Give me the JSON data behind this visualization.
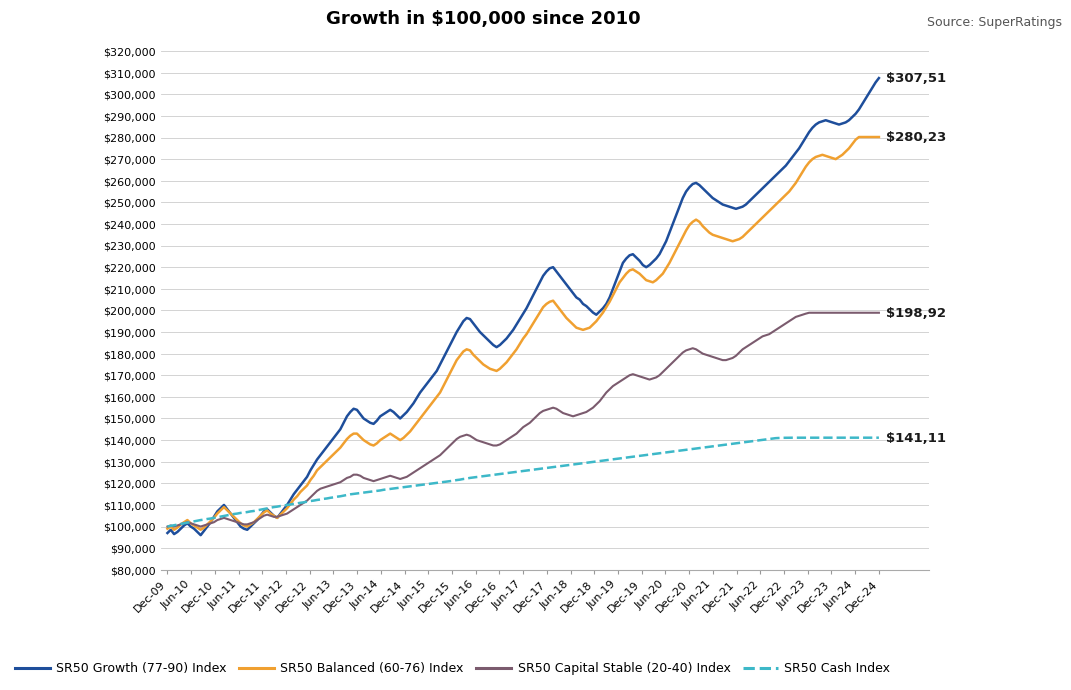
{
  "title": "Growth in $100,000 since 2010",
  "source": "Source: SuperRatings",
  "background_color": "#ffffff",
  "plot_bg_color": "#ffffff",
  "grid_color": "#cccccc",
  "ylim": [
    80000,
    325000
  ],
  "yticks": [
    80000,
    90000,
    100000,
    110000,
    120000,
    130000,
    140000,
    150000,
    160000,
    170000,
    180000,
    190000,
    200000,
    210000,
    220000,
    230000,
    240000,
    250000,
    260000,
    270000,
    280000,
    290000,
    300000,
    310000,
    320000
  ],
  "x_labels": [
    "Dec-09",
    "Jun-10",
    "Dec-10",
    "Jun-11",
    "Dec-11",
    "Jun-12",
    "Dec-12",
    "Jun-13",
    "Dec-13",
    "Jun-14",
    "Dec-14",
    "Jun-15",
    "Dec-15",
    "Jun-16",
    "Dec-16",
    "Jun-17",
    "Dec-17",
    "Jun-18",
    "Dec-18",
    "Jun-19",
    "Dec-19",
    "Jun-20",
    "Dec-20",
    "Jun-21",
    "Dec-21",
    "Jun-22",
    "Dec-22",
    "Jun-23",
    "Dec-23",
    "Jun-24",
    "Dec-24"
  ],
  "end_labels": {
    "growth": "$307,51",
    "balanced": "$280,23",
    "capital_stable": "$198,92",
    "cash": "$141,11"
  },
  "series": {
    "growth": {
      "label": "SR50 Growth (77-90) Index",
      "color": "#1e4e9b",
      "linewidth": 1.8,
      "linestyle": "solid",
      "values": [
        97000,
        98500,
        96500,
        97500,
        99000,
        100500,
        101500,
        100000,
        99000,
        97500,
        96000,
        98000,
        100000,
        102000,
        104500,
        107000,
        108500,
        110000,
        108000,
        106000,
        104000,
        102000,
        100000,
        99000,
        98500,
        100000,
        101500,
        103000,
        105000,
        107000,
        108000,
        106500,
        105000,
        104000,
        106000,
        108000,
        110000,
        112500,
        115000,
        117000,
        119000,
        121000,
        123000,
        126000,
        128500,
        131000,
        133000,
        135000,
        137000,
        139000,
        141000,
        143000,
        145000,
        148000,
        151000,
        153000,
        154500,
        154000,
        152000,
        150000,
        149000,
        148000,
        147500,
        149000,
        151000,
        152000,
        153000,
        154000,
        153000,
        151500,
        150000,
        151500,
        153000,
        155000,
        157000,
        159500,
        162000,
        164000,
        166000,
        168000,
        170000,
        172000,
        175000,
        178000,
        181000,
        184000,
        187000,
        190000,
        192500,
        195000,
        196500,
        196000,
        194000,
        192000,
        190000,
        188500,
        187000,
        185500,
        184000,
        183000,
        184000,
        185500,
        187000,
        189000,
        191000,
        193500,
        196000,
        198500,
        201000,
        204000,
        207000,
        210000,
        213000,
        216000,
        218000,
        219500,
        220000,
        218000,
        216000,
        214000,
        212000,
        210000,
        208000,
        206000,
        205000,
        203000,
        202000,
        200500,
        199000,
        198000,
        199500,
        201000,
        203000,
        206000,
        210000,
        214000,
        218000,
        222000,
        224000,
        225500,
        226000,
        224500,
        223000,
        221000,
        220000,
        221000,
        222500,
        224000,
        226000,
        229000,
        232000,
        236000,
        240000,
        244000,
        248000,
        252000,
        255000,
        257000,
        258500,
        259000,
        258000,
        256500,
        255000,
        253500,
        252000,
        251000,
        250000,
        249000,
        248500,
        248000,
        247500,
        247000,
        247500,
        248000,
        249000,
        250500,
        252000,
        253500,
        255000,
        256500,
        258000,
        259500,
        261000,
        262500,
        264000,
        265500,
        267000,
        269000,
        271000,
        273000,
        275000,
        277500,
        280000,
        282500,
        284500,
        286000,
        287000,
        287500,
        288000,
        287500,
        287000,
        286500,
        286000,
        286500,
        287000,
        288000,
        289500,
        291000,
        293000,
        295500,
        298000,
        300500,
        303000,
        305500,
        307510
      ]
    },
    "balanced": {
      "label": "SR50 Balanced (60-76) Index",
      "color": "#f0a030",
      "linewidth": 1.8,
      "linestyle": "solid",
      "values": [
        99000,
        100000,
        98500,
        99500,
        101000,
        102000,
        103000,
        101500,
        100500,
        99500,
        98500,
        99500,
        101000,
        102500,
        104000,
        106000,
        107500,
        109000,
        107500,
        106000,
        104500,
        103000,
        101500,
        100500,
        100000,
        101000,
        102000,
        103500,
        105000,
        106500,
        107500,
        106000,
        105000,
        104000,
        105500,
        107000,
        108500,
        110500,
        112500,
        114000,
        116000,
        117500,
        119000,
        121500,
        123500,
        126000,
        127500,
        129000,
        130500,
        132000,
        133500,
        135000,
        136500,
        138500,
        140500,
        142000,
        143000,
        143000,
        141500,
        140000,
        139000,
        138000,
        137500,
        138500,
        140000,
        141000,
        142000,
        143000,
        142000,
        141000,
        140000,
        141000,
        142500,
        144000,
        146000,
        148000,
        150000,
        152000,
        154000,
        156000,
        158000,
        160000,
        162000,
        165000,
        168000,
        171000,
        174000,
        177000,
        179000,
        181000,
        182000,
        181500,
        179500,
        178000,
        176500,
        175000,
        174000,
        173000,
        172500,
        172000,
        173000,
        174500,
        176000,
        178000,
        180000,
        182000,
        184500,
        187000,
        189000,
        191500,
        194000,
        196500,
        199000,
        201500,
        203000,
        204000,
        204500,
        202500,
        200500,
        198500,
        196500,
        195000,
        193500,
        192000,
        191500,
        191000,
        191500,
        192000,
        193500,
        195000,
        197000,
        199000,
        201500,
        204000,
        207000,
        210000,
        213000,
        215000,
        217000,
        218500,
        219000,
        218000,
        217000,
        215500,
        214000,
        213500,
        213000,
        214000,
        215500,
        217000,
        219500,
        222000,
        225000,
        228000,
        231000,
        234000,
        237000,
        239500,
        241000,
        242000,
        241000,
        239000,
        237500,
        236000,
        235000,
        234500,
        234000,
        233500,
        233000,
        232500,
        232000,
        232500,
        233000,
        234000,
        235500,
        237000,
        238500,
        240000,
        241500,
        243000,
        244500,
        246000,
        247500,
        249000,
        250500,
        252000,
        253500,
        255000,
        257000,
        259000,
        261500,
        264000,
        266500,
        268500,
        270000,
        271000,
        271500,
        272000,
        271500,
        271000,
        270500,
        270000,
        271000,
        272000,
        273500,
        275000,
        277000,
        279000,
        280230
      ]
    },
    "capital_stable": {
      "label": "SR50 Capital Stable (20-40) Index",
      "color": "#7b5b6e",
      "linewidth": 1.5,
      "linestyle": "solid",
      "values": [
        100000,
        100500,
        100000,
        100500,
        101000,
        101500,
        102000,
        101500,
        101000,
        100500,
        100000,
        100500,
        101000,
        101500,
        102000,
        103000,
        103500,
        104000,
        103500,
        103000,
        102500,
        102000,
        101500,
        101000,
        101000,
        101500,
        102000,
        103000,
        104000,
        105000,
        105500,
        105000,
        104500,
        104500,
        105000,
        105500,
        106000,
        107000,
        108000,
        109000,
        110000,
        111000,
        112000,
        113500,
        115000,
        116500,
        117500,
        118000,
        118500,
        119000,
        119500,
        120000,
        120500,
        121500,
        122500,
        123000,
        124000,
        124000,
        123500,
        122500,
        122000,
        121500,
        121000,
        121500,
        122000,
        122500,
        123000,
        123500,
        123000,
        122500,
        122000,
        122500,
        123000,
        124000,
        125000,
        126000,
        127000,
        128000,
        129000,
        130000,
        131000,
        132000,
        133000,
        134500,
        136000,
        137500,
        139000,
        140500,
        141500,
        142000,
        142500,
        142000,
        141000,
        140000,
        139500,
        139000,
        138500,
        138000,
        137500,
        137500,
        138000,
        139000,
        140000,
        141000,
        142000,
        143000,
        144500,
        146000,
        147000,
        148000,
        149500,
        151000,
        152500,
        153500,
        154000,
        154500,
        155000,
        154500,
        153500,
        152500,
        152000,
        151500,
        151000,
        151500,
        152000,
        152500,
        153000,
        154000,
        155000,
        156500,
        158000,
        160000,
        162000,
        163500,
        165000,
        166000,
        167000,
        168000,
        169000,
        170000,
        170500,
        170000,
        169500,
        169000,
        168500,
        168000,
        168500,
        169000,
        170000,
        171500,
        173000,
        174500,
        176000,
        177500,
        179000,
        180500,
        181500,
        182000,
        182500,
        182000,
        181000,
        180000,
        179500,
        179000,
        178500,
        178000,
        177500,
        177000,
        177000,
        177500,
        178000,
        179000,
        180500,
        182000,
        183000,
        184000,
        185000,
        186000,
        187000,
        188000,
        188500,
        189000,
        190000,
        191000,
        192000,
        193000,
        194000,
        195000,
        196000,
        197000,
        197500,
        198000,
        198500,
        198920
      ]
    },
    "cash": {
      "label": "SR50 Cash Index",
      "color": "#3db8c8",
      "linewidth": 1.8,
      "linestyle": "dashed",
      "values": [
        100000,
        100300,
        100600,
        100900,
        101200,
        101500,
        101800,
        102100,
        102400,
        102700,
        103000,
        103200,
        103500,
        103700,
        104000,
        104300,
        104600,
        104900,
        105200,
        105500,
        105800,
        106000,
        106300,
        106500,
        106700,
        107000,
        107200,
        107500,
        107800,
        108100,
        108400,
        108700,
        109000,
        109200,
        109500,
        109700,
        110000,
        110200,
        110500,
        110700,
        111000,
        111200,
        111500,
        111800,
        112000,
        112300,
        112500,
        112800,
        113000,
        113300,
        113500,
        113800,
        114000,
        114300,
        114600,
        114900,
        115100,
        115300,
        115500,
        115700,
        115900,
        116100,
        116300,
        116500,
        116700,
        117000,
        117200,
        117400,
        117600,
        117800,
        118000,
        118200,
        118400,
        118600,
        118800,
        119000,
        119200,
        119400,
        119600,
        119800,
        120000,
        120200,
        120400,
        120600,
        120800,
        121000,
        121200,
        121500,
        121700,
        122000,
        122200,
        122500,
        122700,
        122900,
        123100,
        123300,
        123500,
        123700,
        123900,
        124100,
        124300,
        124500,
        124700,
        124900,
        125100,
        125300,
        125500,
        125700,
        125900,
        126100,
        126300,
        126500,
        126700,
        126900,
        127100,
        127300,
        127500,
        127700,
        127900,
        128100,
        128300,
        128500,
        128700,
        128900,
        129100,
        129300,
        129500,
        129700,
        129900,
        130100,
        130300,
        130500,
        130700,
        130900,
        131100,
        131300,
        131500,
        131700,
        131900,
        132100,
        132300,
        132500,
        132700,
        132900,
        133100,
        133300,
        133500,
        133700,
        133900,
        134100,
        134300,
        134500,
        134700,
        134900,
        135100,
        135300,
        135500,
        135700,
        135900,
        136100,
        136300,
        136500,
        136700,
        136900,
        137100,
        137300,
        137500,
        137700,
        137900,
        138100,
        138300,
        138500,
        138700,
        138900,
        139100,
        139300,
        139500,
        139700,
        139900,
        140100,
        140300,
        140500,
        140700,
        140900,
        141000,
        141050,
        141080,
        141090,
        141100,
        141105,
        141108,
        141110,
        141110
      ]
    }
  },
  "legend": {
    "ncol": 4,
    "fontsize": 9
  },
  "title_fontsize": 13,
  "source_fontsize": 9,
  "tick_fontsize": 8,
  "label_fontsize": 9.5
}
